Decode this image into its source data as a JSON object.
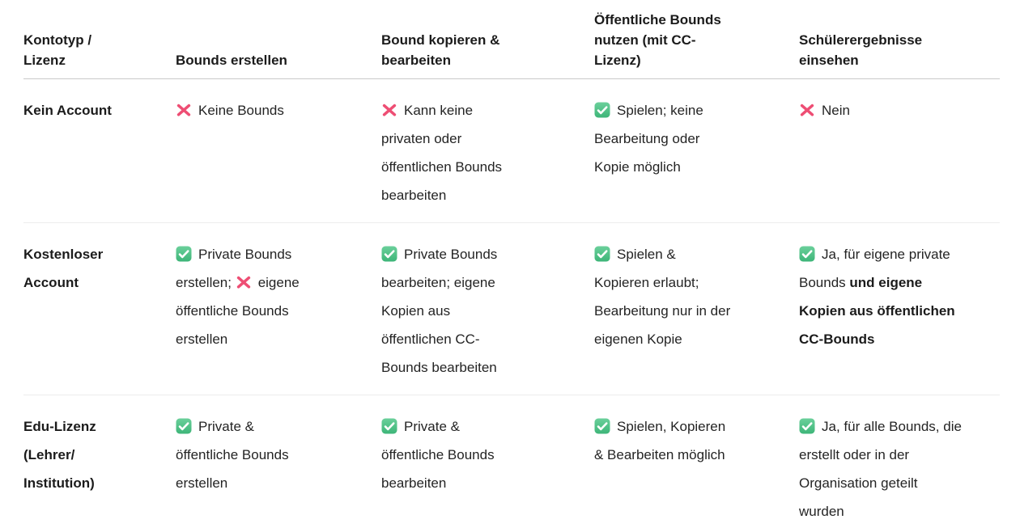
{
  "colors": {
    "check_green_top": "#6bd09b",
    "check_green_bottom": "#3db578",
    "x_pink": "#ee4e74",
    "header_divider": "#c9c9c9",
    "row_divider": "#ececec",
    "header_text": "#1b1b1b",
    "body_text": "#242424"
  },
  "icons": {
    "check": {
      "name": "check-icon",
      "meaning": "allowed"
    },
    "x": {
      "name": "x-icon",
      "meaning": "not-allowed"
    }
  },
  "table": {
    "columns": [
      {
        "id": "kontotyp",
        "label": "Kontotyp /\nLizenz"
      },
      {
        "id": "erstellen",
        "label": "Bounds erstellen"
      },
      {
        "id": "kopieren",
        "label": "Bound kopieren &\nbearbeiten"
      },
      {
        "id": "nutzen",
        "label": "Öffentliche Bounds\nnutzen (mit CC-\nLizenz)"
      },
      {
        "id": "ergebnisse",
        "label": "Schülerergebnisse\neinsehen"
      }
    ],
    "rows": [
      {
        "label": "Kein Account",
        "cells": [
          [
            {
              "icon": "x"
            },
            {
              "text": "Keine Bounds"
            }
          ],
          [
            {
              "icon": "x"
            },
            {
              "text": "Kann keine\nprivaten oder\nöffentlichen Bounds\nbearbeiten"
            }
          ],
          [
            {
              "icon": "check"
            },
            {
              "text": "Spielen; keine\nBearbeitung oder\nKopie möglich"
            }
          ],
          [
            {
              "icon": "x"
            },
            {
              "text": "Nein"
            }
          ]
        ]
      },
      {
        "label": "Kostenloser\nAccount",
        "cells": [
          [
            {
              "icon": "check"
            },
            {
              "text": "Private Bounds\nerstellen; "
            },
            {
              "icon": "x"
            },
            {
              "text": "eigene\nöffentliche Bounds\nerstellen"
            }
          ],
          [
            {
              "icon": "check"
            },
            {
              "text": "Private Bounds\nbearbeiten; eigene\nKopien aus\nöffentlichen CC-\nBounds bearbeiten"
            }
          ],
          [
            {
              "icon": "check"
            },
            {
              "text": "Spielen &\nKopieren erlaubt;\nBearbeitung nur in der\neigenen Kopie"
            }
          ],
          [
            {
              "icon": "check"
            },
            {
              "text": "Ja, für eigene private\nBounds "
            },
            {
              "text": "und eigene\nKopien aus öffentlichen\nCC-Bounds",
              "bold": true
            }
          ]
        ]
      },
      {
        "label": "Edu-Lizenz\n(Lehrer/\nInstitution)",
        "cells": [
          [
            {
              "icon": "check"
            },
            {
              "text": "Private &\nöffentliche Bounds\nerstellen"
            }
          ],
          [
            {
              "icon": "check"
            },
            {
              "text": "Private &\nöffentliche Bounds\nbearbeiten"
            }
          ],
          [
            {
              "icon": "check"
            },
            {
              "text": "Spielen, Kopieren\n& Bearbeiten möglich"
            }
          ],
          [
            {
              "icon": "check"
            },
            {
              "text": "Ja, für alle Bounds, die\nerstellt oder in der\nOrganisation geteilt\nwurden"
            }
          ]
        ]
      }
    ]
  }
}
